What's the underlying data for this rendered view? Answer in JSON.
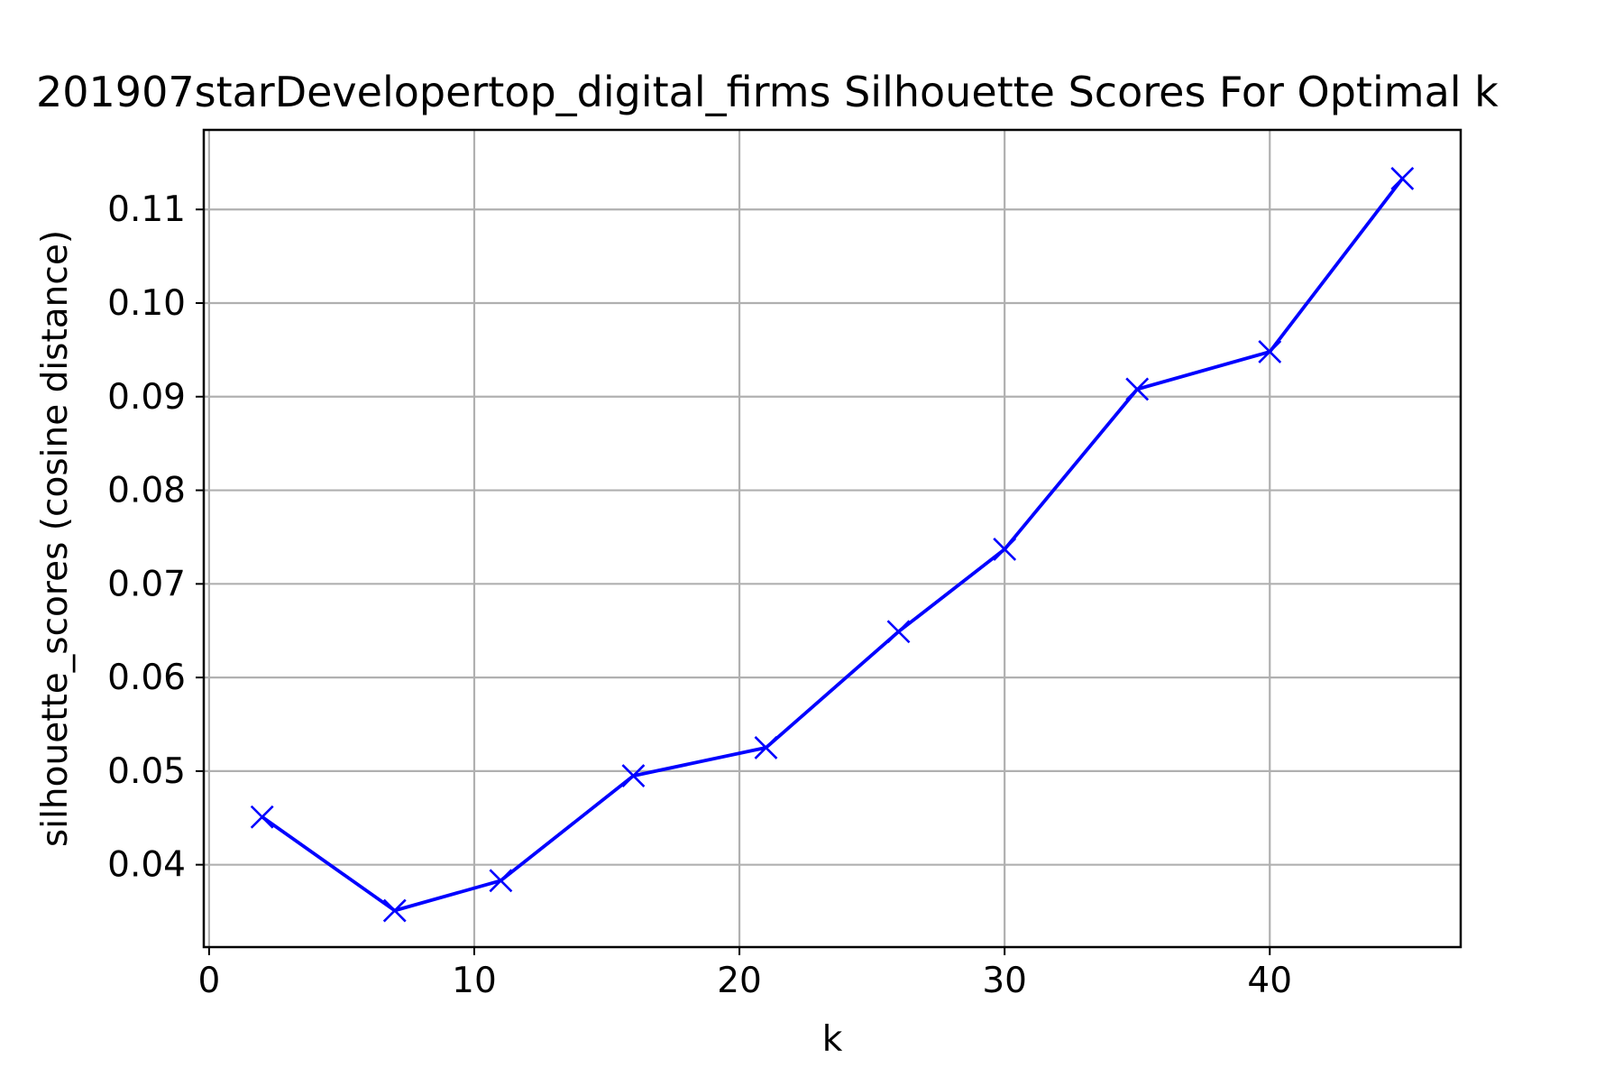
{
  "chart_data": {
    "type": "line",
    "title": "201907starDevelopertop_digital_firms Silhouette Scores For Optimal k",
    "xlabel": "k",
    "ylabel": "silhouette_scores (cosine distance)",
    "x": [
      2,
      7,
      11,
      16,
      21,
      26,
      30,
      35,
      40,
      45
    ],
    "series": [
      {
        "values": [
          0.0451,
          0.0351,
          0.0383,
          0.0495,
          0.0525,
          0.0649,
          0.0737,
          0.0908,
          0.0948,
          0.1133
        ]
      }
    ],
    "xlim": [
      -0.2,
      47.2
    ],
    "ylim": [
      0.0312,
      0.1185
    ],
    "xticks": [
      0,
      10,
      20,
      30,
      40
    ],
    "xtick_labels": [
      "0",
      "10",
      "20",
      "30",
      "40"
    ],
    "yticks": [
      0.04,
      0.05,
      0.06,
      0.07,
      0.08,
      0.09,
      0.1,
      0.11
    ],
    "ytick_labels": [
      "0.04",
      "0.05",
      "0.06",
      "0.07",
      "0.08",
      "0.09",
      "0.10",
      "0.11"
    ],
    "grid": true,
    "marker": "x",
    "line_color": "#0000ff",
    "grid_color": "#b0b0b0"
  }
}
